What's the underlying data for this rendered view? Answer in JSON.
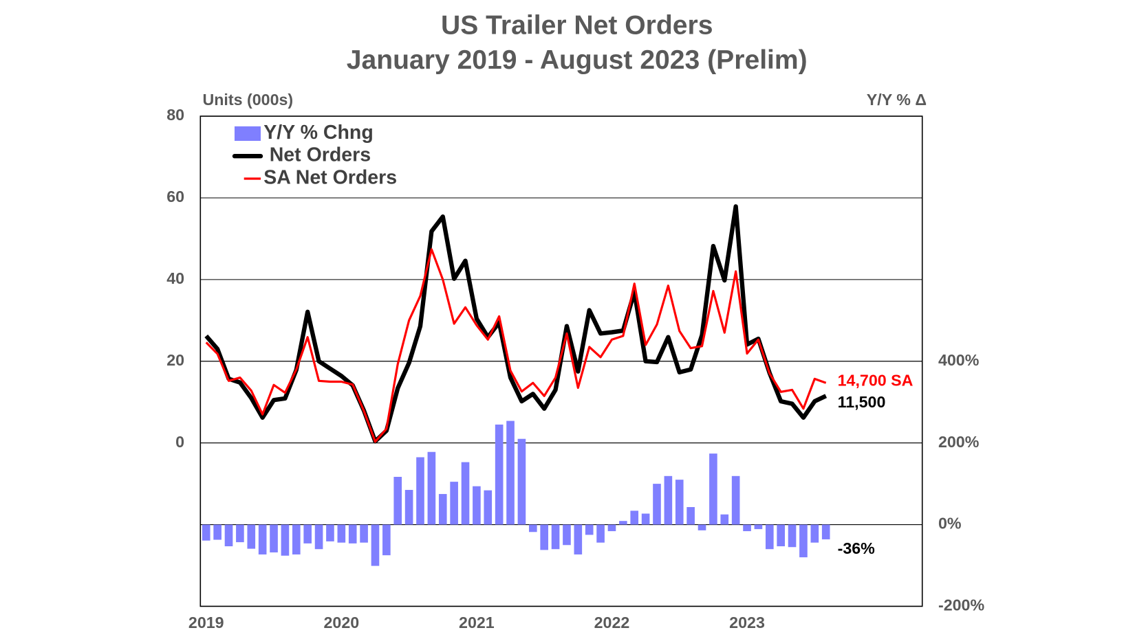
{
  "chart_data": {
    "type": "combo",
    "title": "US Trailer Net Orders",
    "subtitle": "January 2019 - August 2023 (Prelim)",
    "y_label": "Units (000s)",
    "y2_label": "Y/Y % Δ",
    "categories": [
      "2019",
      null,
      null,
      null,
      null,
      null,
      null,
      null,
      null,
      null,
      null,
      null,
      "2020",
      null,
      null,
      null,
      null,
      null,
      null,
      null,
      null,
      null,
      null,
      null,
      "2021",
      null,
      null,
      null,
      null,
      null,
      null,
      null,
      null,
      null,
      null,
      null,
      "2022",
      null,
      null,
      null,
      null,
      null,
      null,
      null,
      null,
      null,
      null,
      null,
      "2023",
      null,
      null,
      null,
      null,
      null,
      null,
      null
    ],
    "ylim": [
      -40,
      80
    ],
    "yticks": [
      0,
      20,
      40,
      60,
      80
    ],
    "y2lim": [
      -200,
      1000
    ],
    "y2ticks": [
      {
        "value": -200,
        "label": "-200%"
      },
      {
        "value": 0,
        "label": "0%"
      },
      {
        "value": 200,
        "label": "200%"
      },
      {
        "value": 400,
        "label": "400%"
      }
    ],
    "grid": true,
    "legend": "top-left",
    "series": [
      {
        "name": "Y/Y % Chng",
        "type": "bar",
        "axis": "y2",
        "color": "#7f7fff",
        "values": [
          -39,
          -37,
          -53,
          -43,
          -59,
          -73,
          -68,
          -76,
          -73,
          -46,
          -60,
          -41,
          -44,
          -46,
          -44,
          -101,
          -75,
          117,
          85,
          165,
          178,
          75,
          105,
          153,
          94,
          84,
          245,
          254,
          210,
          -18,
          -62,
          -60,
          -50,
          -73,
          -25,
          -44,
          -16,
          9,
          34,
          27,
          100,
          119,
          110,
          43,
          -14,
          174,
          25,
          119,
          -16,
          -11,
          -60,
          -53,
          -55,
          -80,
          -44,
          -36
        ],
        "value_labels": [
          null,
          null,
          null,
          null,
          null,
          null,
          null,
          null,
          null,
          null,
          null,
          null,
          null,
          null,
          null,
          null,
          null,
          null,
          null,
          null,
          null,
          null,
          null,
          null,
          null,
          null,
          null,
          null,
          null,
          null,
          null,
          null,
          null,
          null,
          null,
          null,
          null,
          null,
          null,
          null,
          null,
          null,
          null,
          null,
          null,
          null,
          null,
          null,
          null,
          null,
          null,
          null,
          null,
          null,
          null,
          "-36%"
        ],
        "label_color": "#000000"
      },
      {
        "name": "Net Orders",
        "type": "line",
        "color": "#000000",
        "values": [
          26.2,
          23,
          15.7,
          14.8,
          11,
          6.2,
          10.5,
          10.9,
          17.9,
          32.1,
          20,
          18.2,
          16.4,
          14.1,
          7.9,
          0.4,
          3,
          13.4,
          19.6,
          28.6,
          51.8,
          55.4,
          40.2,
          44.6,
          30.4,
          25.9,
          29.5,
          16,
          10.2,
          12,
          8.4,
          13,
          28.6,
          17.5,
          32.5,
          26.8,
          27.1,
          27.5,
          37,
          20,
          19.8,
          25.9,
          17.3,
          18,
          26.4,
          48.2,
          39.8,
          57.9,
          24.1,
          25.5,
          17.1,
          10.2,
          9.6,
          6.2,
          10.2,
          11.5
        ],
        "value_labels": [
          null,
          null,
          null,
          null,
          null,
          null,
          null,
          null,
          null,
          null,
          null,
          null,
          null,
          null,
          null,
          null,
          null,
          null,
          null,
          null,
          null,
          null,
          null,
          null,
          null,
          null,
          null,
          null,
          null,
          null,
          null,
          null,
          null,
          null,
          null,
          null,
          null,
          null,
          null,
          null,
          null,
          null,
          null,
          null,
          null,
          null,
          null,
          null,
          null,
          null,
          null,
          null,
          null,
          null,
          null,
          "11,500"
        ],
        "label_color": "#000000"
      },
      {
        "name": "SA Net Orders",
        "type": "line",
        "color": "#ff0000",
        "values": [
          24.6,
          21.8,
          15.2,
          16,
          12.8,
          7,
          14.2,
          12.3,
          18,
          25.9,
          15.2,
          15,
          15,
          14.3,
          7.8,
          0.3,
          3.5,
          19.3,
          30,
          36,
          47.4,
          40,
          29.2,
          33.2,
          28.8,
          25.3,
          31,
          17.7,
          12.6,
          14.7,
          11.5,
          16,
          26.8,
          13.5,
          23.5,
          21,
          25.3,
          26.2,
          39,
          24,
          29,
          38.5,
          27.4,
          23.2,
          23.7,
          37.2,
          27,
          42,
          21.9,
          25.3,
          17,
          12.5,
          13,
          8.4,
          15.7,
          14.7
        ],
        "value_labels": [
          null,
          null,
          null,
          null,
          null,
          null,
          null,
          null,
          null,
          null,
          null,
          null,
          null,
          null,
          null,
          null,
          null,
          null,
          null,
          null,
          null,
          null,
          null,
          null,
          null,
          null,
          null,
          null,
          null,
          null,
          null,
          null,
          null,
          null,
          null,
          null,
          null,
          null,
          null,
          null,
          null,
          null,
          null,
          null,
          null,
          null,
          null,
          null,
          null,
          null,
          null,
          null,
          null,
          null,
          null,
          "14,700 SA"
        ],
        "label_color": "#ff0000"
      }
    ]
  }
}
